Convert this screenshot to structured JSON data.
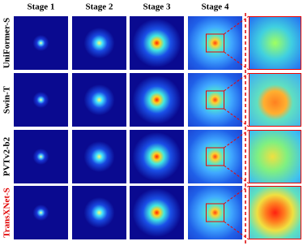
{
  "header": {
    "columns": [
      "Stage 1",
      "Stage 2",
      "Stage 3",
      "Stage 4"
    ]
  },
  "rows": [
    {
      "label": "UniFormer-S"
    },
    {
      "label": "Swin-T"
    },
    {
      "label": "PVTv2-b2"
    },
    {
      "label": "TransXNet-S"
    }
  ]
}
